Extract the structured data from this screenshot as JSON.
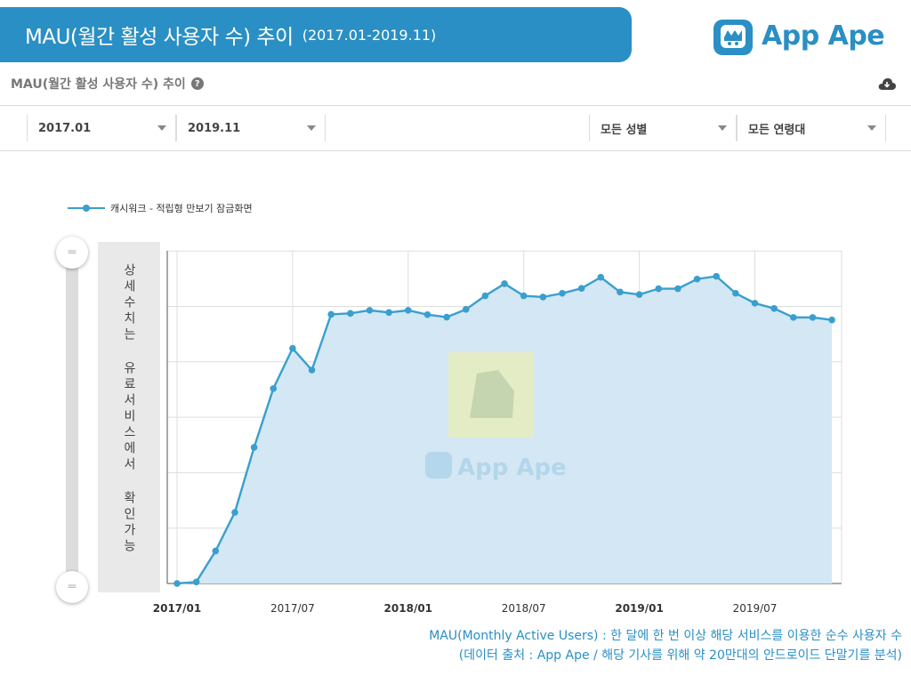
{
  "banner": {
    "title": "MAU(월간 활성 사용자 수) 추이",
    "subtitle": "(2017.01-2019.11)"
  },
  "logo": {
    "name": "App Ape"
  },
  "section": {
    "title": "MAU(월간 활성 사용자 수) 추이",
    "help_icon": "question-circle-icon",
    "download_icon": "cloud-download-icon"
  },
  "filters": {
    "start": "2017.01",
    "end": "2019.11",
    "gender": "모든 성별",
    "age": "모든 연령대"
  },
  "slider_note": "상세수치는 유료서비스에서 확인가능",
  "footnote": {
    "line1": "MAU(Monthly Active Users) : 한 달에 한 번 이상 해당 서비스를 이용한 순수 사용자 수",
    "line2": "(데이터 출처 : App Ape / 해당 기사를 위해 약 20만대의 안드로이드 단말기를 분석)"
  },
  "colors": {
    "accent": "#2a8fc4",
    "line": "#3a9fce",
    "area": "#d3e8f4",
    "grid": "#dddddd"
  },
  "chart_data": {
    "type": "area",
    "legend": "캐시워크 - 적립형 만보기 잠금화면",
    "legend_position": "top-left",
    "grid": true,
    "y_labels_visible": false,
    "xlim": [
      0,
      34
    ],
    "ylim": [
      0,
      100
    ],
    "x_ticks": [
      {
        "i": 0,
        "label": "2017/01",
        "bold": true
      },
      {
        "i": 6,
        "label": "2017/07",
        "bold": false
      },
      {
        "i": 12,
        "label": "2018/01",
        "bold": true
      },
      {
        "i": 18,
        "label": "2018/07",
        "bold": false
      },
      {
        "i": 24,
        "label": "2019/01",
        "bold": true
      },
      {
        "i": 30,
        "label": "2019/07",
        "bold": false
      }
    ],
    "x": [
      "2017/01",
      "2017/02",
      "2017/03",
      "2017/04",
      "2017/05",
      "2017/06",
      "2017/07",
      "2017/08",
      "2017/09",
      "2017/10",
      "2017/11",
      "2017/12",
      "2018/01",
      "2018/02",
      "2018/03",
      "2018/04",
      "2018/05",
      "2018/06",
      "2018/07",
      "2018/08",
      "2018/09",
      "2018/10",
      "2018/11",
      "2018/12",
      "2019/01",
      "2019/02",
      "2019/03",
      "2019/04",
      "2019/05",
      "2019/06",
      "2019/07",
      "2019/08",
      "2019/09",
      "2019/10",
      "2019/11"
    ],
    "series": [
      {
        "name": "캐시워크 - 적립형 만보기 잠금화면",
        "values": [
          0,
          0.5,
          10.5,
          23,
          44,
          63,
          76,
          69,
          87,
          87.3,
          88.3,
          87.6,
          88.3,
          86.9,
          86.1,
          88.6,
          93,
          96.9,
          93,
          92.6,
          93.8,
          95.4,
          99,
          94.2,
          93.4,
          95.3,
          95.3,
          98.4,
          99.3,
          93.8,
          90.6,
          88.9,
          86,
          86,
          85.2
        ]
      }
    ]
  }
}
